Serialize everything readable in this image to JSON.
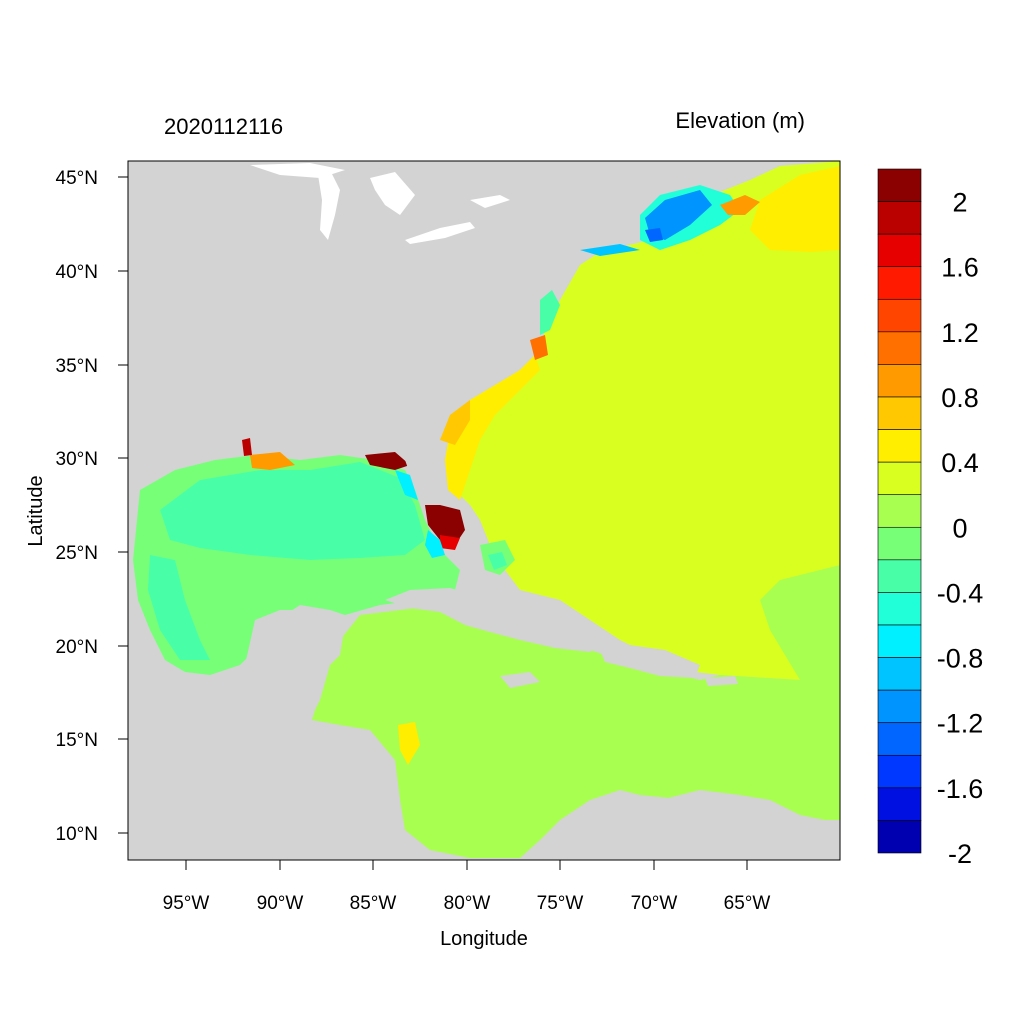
{
  "title_left": "2020112116",
  "title_right": "Elevation (m)",
  "xlabel": "Longitude",
  "ylabel": "Latitude",
  "x_ticks": [
    "95°W",
    "90°W",
    "85°W",
    "80°W",
    "75°W",
    "70°W",
    "65°W"
  ],
  "y_ticks": [
    "45°N",
    "40°N",
    "35°N",
    "30°N",
    "25°N",
    "20°N",
    "15°N",
    "10°N"
  ],
  "colorbar": {
    "labels": [
      "2",
      "1.6",
      "1.2",
      "0.8",
      "0.4",
      "0",
      "-0.4",
      "-0.8",
      "-1.2",
      "-1.6",
      "-2"
    ],
    "colors_top_to_bottom": [
      "#8b0000",
      "#bb0000",
      "#e60000",
      "#ff1a00",
      "#ff4500",
      "#ff7000",
      "#ff9a00",
      "#ffc800",
      "#ffee00",
      "#d9ff20",
      "#a8ff50",
      "#78ff78",
      "#48ffa8",
      "#20ffd8",
      "#00f0ff",
      "#00c4ff",
      "#0094ff",
      "#0066ff",
      "#0038ff",
      "#0010e0",
      "#0000b0"
    ]
  },
  "colors": {
    "land": "#d3d3d3",
    "water_white": "#ffffff"
  }
}
